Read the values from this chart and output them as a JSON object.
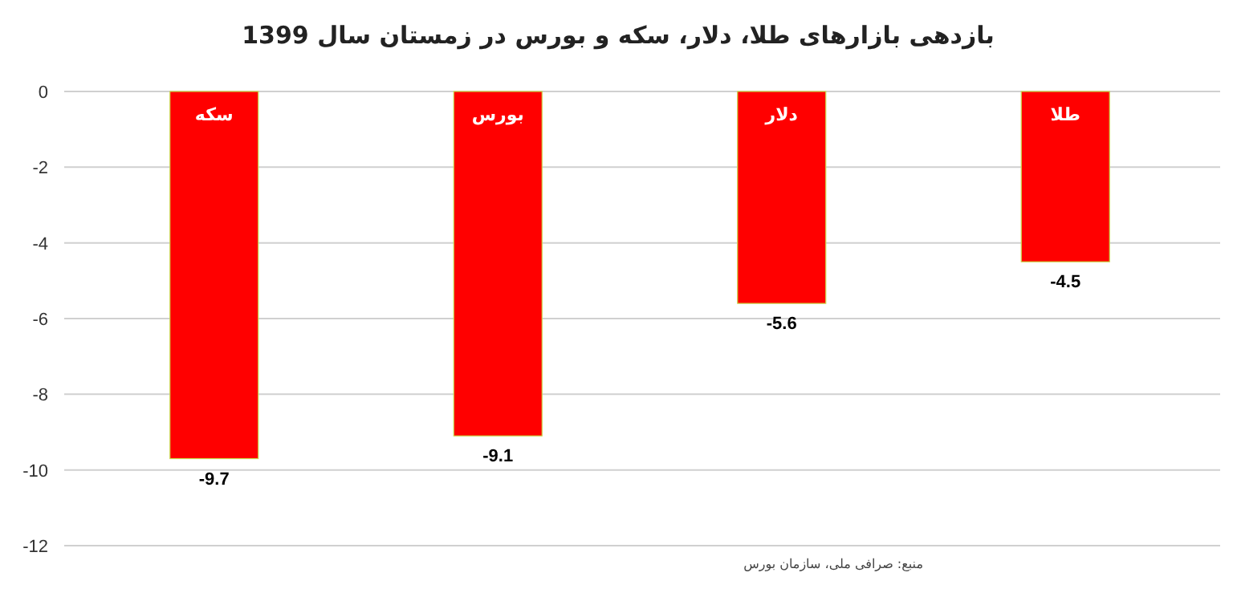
{
  "chart_data": {
    "type": "bar",
    "title": "بازدهی بازارهای طلا، دلار، سکه و بورس در زمستان سال 1399",
    "categories": [
      "سکه",
      "بورس",
      "دلار",
      "طلا"
    ],
    "values": [
      -9.7,
      -9.1,
      -5.6,
      -4.5
    ],
    "color": "#ff0000",
    "ylim": [
      -12,
      0
    ],
    "yticks": [
      -12,
      -10,
      -8,
      -6,
      -4,
      -2,
      0
    ],
    "grid": "y",
    "data_labels": true,
    "annotations": [
      "منبع: صرافی ملی، سازمان بورس"
    ]
  }
}
